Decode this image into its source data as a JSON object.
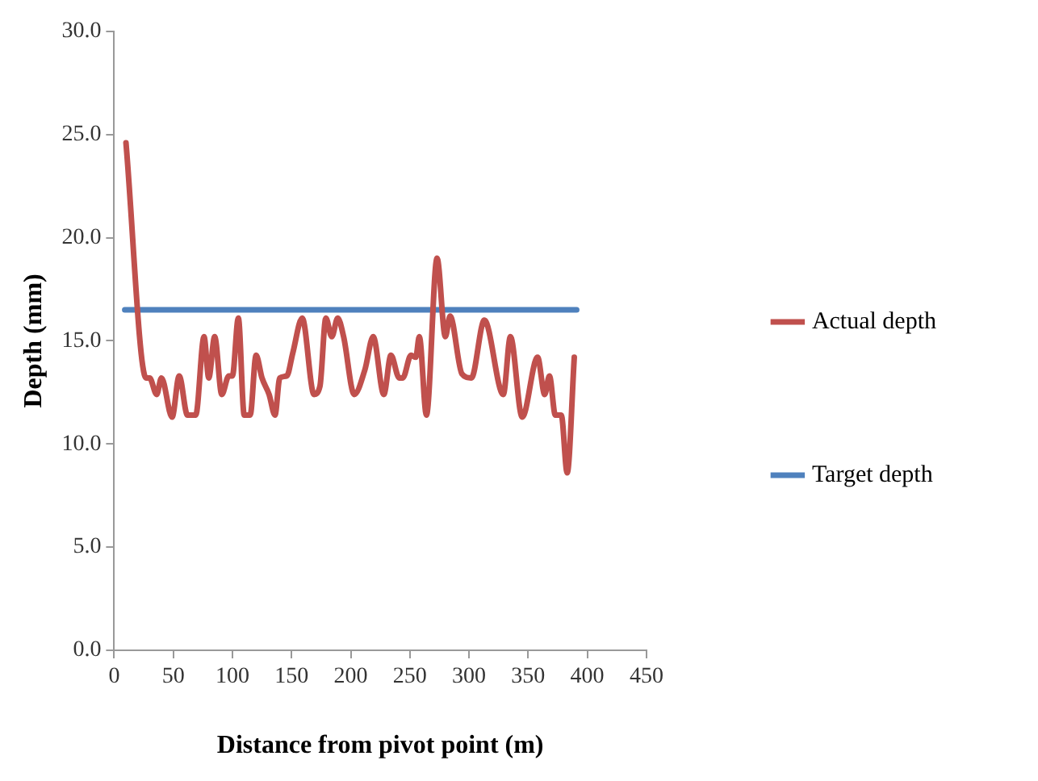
{
  "chart_data": {
    "type": "line",
    "xlabel": "Distance from pivot point (m)",
    "ylabel": "Depth (mm)",
    "xlim": [
      0,
      450
    ],
    "xticks": [
      0,
      50,
      100,
      150,
      200,
      250,
      300,
      350,
      400,
      450
    ],
    "ylim": [
      0,
      30
    ],
    "yticks": [
      {
        "value": 0,
        "label": "0.0"
      },
      {
        "value": 5,
        "label": "5.0"
      },
      {
        "value": 10,
        "label": "10.0"
      },
      {
        "value": 15,
        "label": "15.0"
      },
      {
        "value": 20,
        "label": "20.0"
      },
      {
        "value": 25,
        "label": "25.0"
      },
      {
        "value": 30,
        "label": "30.0"
      }
    ],
    "grid": false,
    "legend": "right",
    "marker": "none",
    "line_style": "solid",
    "series": [
      {
        "name": "Actual depth",
        "color": "#c0504d",
        "x": [
          10,
          27,
          30,
          36,
          40,
          49,
          55,
          62,
          69,
          76,
          80,
          85,
          91,
          97,
          100,
          105,
          110,
          115,
          120,
          125,
          131,
          136,
          140,
          146,
          151,
          159,
          169,
          174,
          179,
          184,
          189,
          194,
          203,
          212,
          219,
          228,
          234,
          241,
          244,
          251,
          255,
          258,
          264,
          273,
          280,
          284,
          294,
          302,
          313,
          329,
          335,
          345,
          358,
          364,
          368,
          373,
          378,
          383,
          389
        ],
        "values": [
          24.6,
          13.2,
          13.2,
          12.4,
          13.2,
          11.3,
          13.3,
          11.4,
          11.4,
          15.2,
          13.2,
          15.2,
          12.4,
          13.3,
          13.3,
          16.1,
          11.4,
          11.4,
          14.3,
          13.2,
          12.4,
          11.4,
          13.2,
          13.3,
          14.4,
          16.1,
          12.4,
          12.8,
          16.1,
          15.2,
          16.1,
          15.2,
          12.4,
          13.6,
          15.2,
          12.4,
          14.3,
          13.2,
          13.2,
          14.3,
          14.2,
          15.2,
          11.4,
          19.0,
          15.2,
          16.2,
          13.4,
          13.2,
          16.0,
          12.4,
          15.2,
          11.3,
          14.2,
          12.4,
          13.3,
          11.4,
          11.4,
          8.6,
          14.2
        ]
      },
      {
        "name": "Target depth",
        "color": "#4f81bd",
        "x": [
          9,
          391
        ],
        "values": [
          16.5,
          16.5
        ]
      }
    ]
  }
}
